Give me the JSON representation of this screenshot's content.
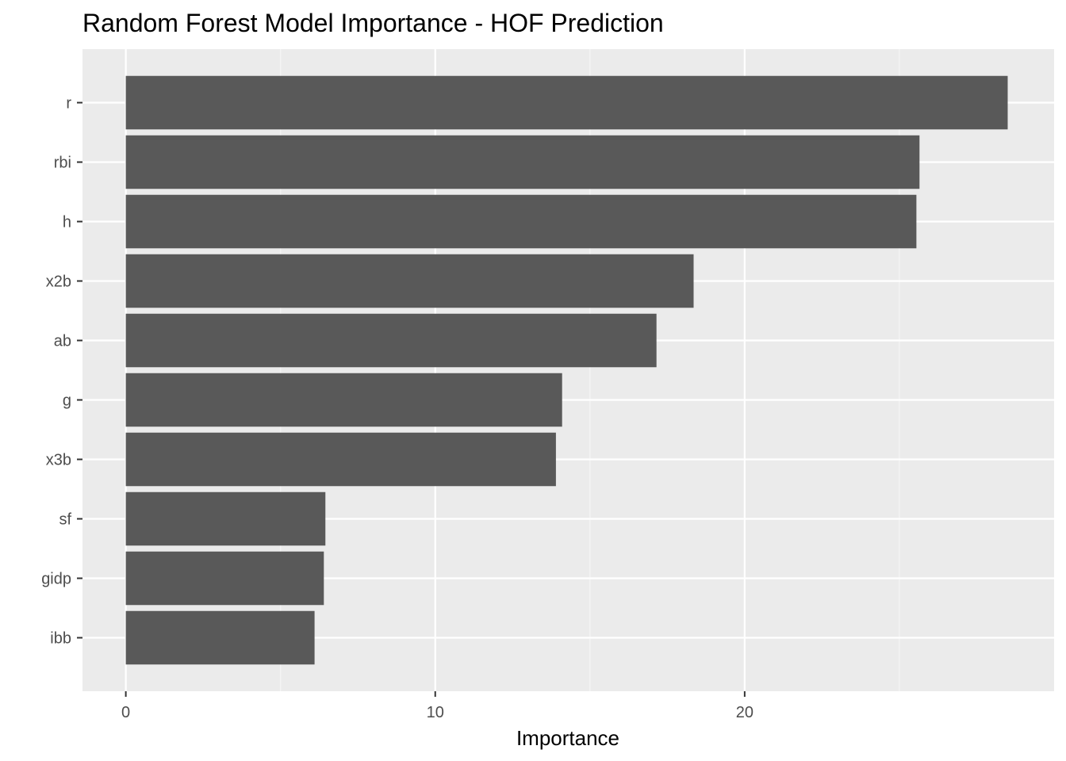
{
  "chart_data": {
    "type": "bar",
    "orientation": "horizontal",
    "title": "Random Forest Model Importance - HOF Prediction",
    "xlabel": "Importance",
    "ylabel": "",
    "categories": [
      "r",
      "rbi",
      "h",
      "x2b",
      "ab",
      "g",
      "x3b",
      "sf",
      "gidp",
      "ibb"
    ],
    "values": [
      28.5,
      25.65,
      25.55,
      18.35,
      17.15,
      14.1,
      13.9,
      6.45,
      6.4,
      6.1
    ],
    "xlim": [
      -1.4,
      30.0
    ],
    "xticks": [
      0,
      10,
      20
    ],
    "xtick_labels": [
      "0",
      "10",
      "20"
    ],
    "grid": true,
    "colors": {
      "bar": "#595959",
      "panel": "#ebebeb",
      "grid_major": "#ffffff",
      "grid_minor": "#f5f5f5",
      "tick": "#333333"
    }
  }
}
